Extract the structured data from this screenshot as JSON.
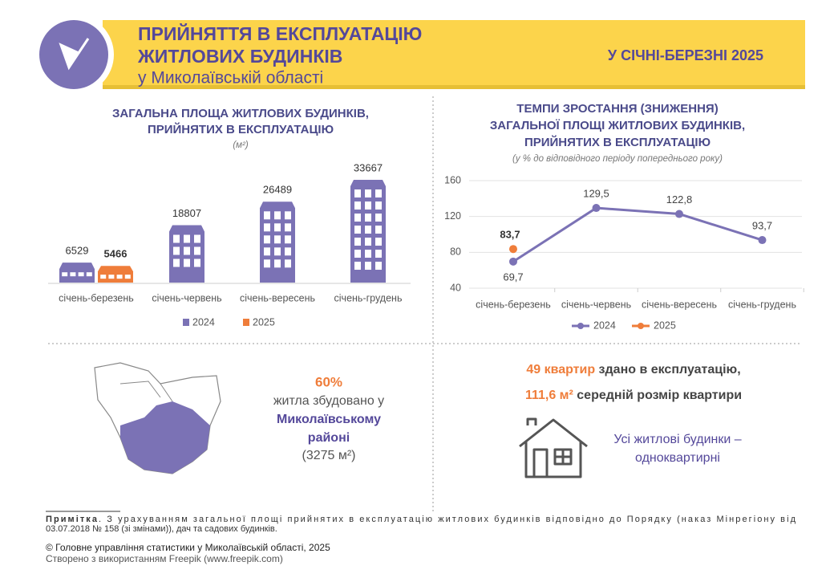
{
  "header": {
    "title_line1": "ПРИЙНЯТТЯ В ЕКСПЛУАТАЦІЮ",
    "title_line2": "ЖИТЛОВИХ БУДИНКІВ",
    "subtitle": "у Миколаївській області",
    "period": "У СІЧНІ-БЕРЕЗНІ 2025"
  },
  "chart_data": [
    {
      "type": "bar",
      "title_lines": [
        "ЗАГАЛЬНА ПЛОЩА ЖИТЛОВИХ БУДИНКІВ,",
        "ПРИЙНЯТИХ В ЕКСПЛУАТАЦІЮ"
      ],
      "unit": "(м²)",
      "categories": [
        "січень-березень",
        "січень-червень",
        "січень-вересень",
        "січень-грудень"
      ],
      "series": [
        {
          "name": "2024",
          "color": "#7b72b5",
          "values": [
            6529,
            18807,
            26489,
            33667
          ]
        },
        {
          "name": "2025",
          "color": "#ef7d3a",
          "values": [
            5466,
            null,
            null,
            null
          ]
        }
      ]
    },
    {
      "type": "line",
      "title_lines": [
        "ТЕМПИ ЗРОСТАННЯ (ЗНИЖЕННЯ)",
        "ЗАГАЛЬНОЇ ПЛОЩІ ЖИТЛОВИХ БУДИНКІВ,",
        "ПРИЙНЯТИХ В ЕКСПЛУАТАЦІЮ"
      ],
      "subtitle": "(у % до відповідного періоду попереднього року)",
      "categories": [
        "січень-березень",
        "січень-червень",
        "січень-вересень",
        "січень-грудень"
      ],
      "ylim": [
        40,
        160
      ],
      "yticks": [
        40,
        80,
        120,
        160
      ],
      "grid": true,
      "series": [
        {
          "name": "2024",
          "color": "#7b72b5",
          "values": [
            69.7,
            129.5,
            122.8,
            93.7
          ],
          "value_labels": [
            "69,7",
            "129,5",
            "122,8",
            "93,7"
          ]
        },
        {
          "name": "2025",
          "color": "#ef7d3a",
          "values": [
            83.7,
            null,
            null,
            null
          ],
          "value_labels": [
            "83,7",
            null,
            null,
            null
          ]
        }
      ]
    }
  ],
  "region": {
    "percent": "60%",
    "line1": "житла збудовано у",
    "line2": "Миколаївському",
    "line3": "районі",
    "area": "(3275 м²)"
  },
  "apartments": {
    "count": "49 квартир",
    "count_rest": " здано в експлуатацію,",
    "size": "111,6 м²",
    "size_rest": " середній розмір квартири",
    "note_line1": "Усі житлові будинки –",
    "note_line2": "одноквартирні"
  },
  "footnote": {
    "label": "Примітка",
    "line1": ". З урахуванням загальної площі прийнятих в експлуатацію житлових будинків відповідно до Порядку (наказ Мінрегіону від",
    "line2": "03.07.2018 № 158 (зі змінами)), дач та садових будинків."
  },
  "footer": {
    "copyright": "© Головне управління статистики у Миколаївській області, 2025",
    "credit": "Створено з використанням Freepik (www.freepik.com)"
  }
}
